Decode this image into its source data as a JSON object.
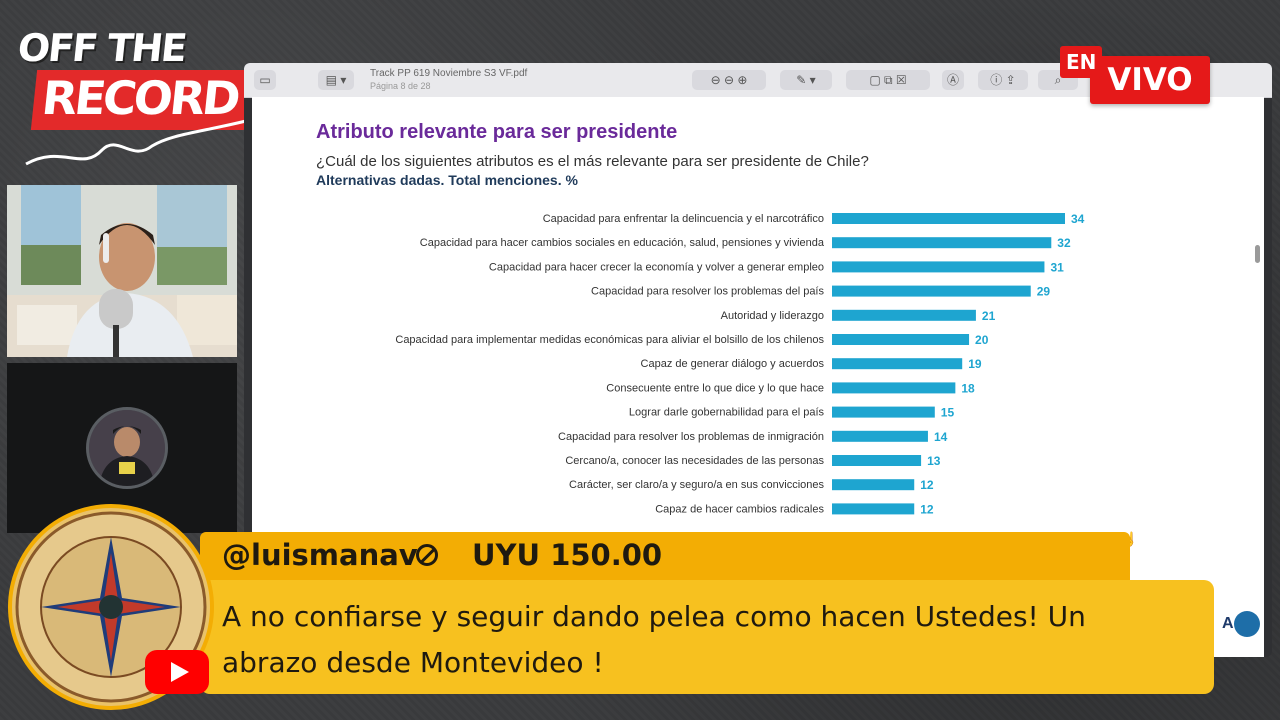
{
  "brand": {
    "logo_line1": "OFF THE",
    "logo_line2": "RECORD"
  },
  "live_badge": {
    "en": "EN",
    "vivo": "VIVO"
  },
  "viewer": {
    "doc_title": "Track PP 619 Noviembre S3 VF.pdf",
    "doc_page": "Página 8 de 28"
  },
  "slide": {
    "title": "Atributo relevante para ser presidente",
    "question": "¿Cuál de los siguientes atributos es el más relevante para ser presidente de Chile?",
    "subtitle": "Alternativas dadas. Total menciones. %"
  },
  "chart_data": {
    "type": "bar",
    "orientation": "horizontal",
    "categories": [
      "Capacidad para enfrentar la delincuencia y el narcotráfico",
      "Capacidad para hacer cambios sociales en educación, salud, pensiones y vivienda",
      "Capacidad para hacer crecer la economía y volver a generar empleo",
      "Capacidad para resolver los problemas del país",
      "Autoridad y liderazgo",
      "Capacidad para implementar medidas económicas para aliviar el bolsillo de los chilenos",
      "Capaz de generar diálogo y acuerdos",
      "Consecuente entre lo que dice y lo que hace",
      "Lograr darle gobernabilidad para el país",
      "Capacidad para resolver los problemas de inmigración",
      "Cercano/a, conocer las necesidades de las personas",
      "Carácter, ser claro/a y seguro/a en sus convicciones",
      "Capaz de hacer cambios radicales"
    ],
    "values": [
      34,
      32,
      31,
      29,
      21,
      20,
      19,
      18,
      15,
      14,
      13,
      12,
      12
    ],
    "value_labels": [
      "34",
      "32",
      "31",
      "29",
      "21",
      "20",
      "19",
      "18",
      "15",
      "14",
      "13",
      "12",
      "12"
    ],
    "xlim": [
      0,
      40
    ],
    "grid": false,
    "bar_color": "#1ea5d0"
  },
  "superchat": {
    "user": "@luismanav",
    "amount": "UYU 150.00",
    "message": "A no confiarse y seguir dando pelea como hacen Ustedes! Un abrazo desde Montevideo !",
    "top_color": "#f3ad04",
    "body_color": "#f7c11f"
  },
  "icons": {
    "platform": "youtube-icon",
    "superchat_symbol": "no-symbol-icon"
  }
}
